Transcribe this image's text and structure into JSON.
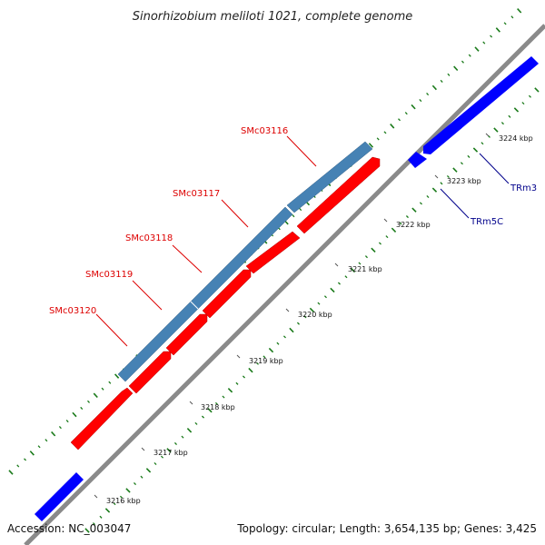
{
  "title": "Sinorhizobium meliloti 1021, complete genome",
  "footer": {
    "accession": "Accession: NC_003047",
    "summary": "Topology: circular; Length: 3,654,135 bp; Genes: 3,425"
  },
  "colors": {
    "background": "#ffffff",
    "backbone": "#8a8a8a",
    "gene_forward_steel": "#4682b4",
    "gene_forward_red": "#ff0000",
    "gene_reverse_blue": "#0000ff",
    "gc_ticks": "#1a7a1a",
    "label_red": "#dd0000",
    "label_blue": "#00008b"
  },
  "axis": {
    "unit": "kbp",
    "ticks": [
      "3216 kbp",
      "3217 kbp",
      "3218 kbp",
      "3219 kbp",
      "3220 kbp",
      "3221 kbp",
      "3222 kbp",
      "3223 kbp",
      "3224 kbp"
    ]
  },
  "genes": {
    "labeled": [
      {
        "name": "SMc03116",
        "color": "red"
      },
      {
        "name": "SMc03117",
        "color": "red"
      },
      {
        "name": "SMc03118",
        "color": "red"
      },
      {
        "name": "SMc03119",
        "color": "red"
      },
      {
        "name": "SMc03120",
        "color": "red"
      },
      {
        "name": "TRm3",
        "color": "blue"
      },
      {
        "name": "TRm5C",
        "color": "blue"
      }
    ]
  }
}
